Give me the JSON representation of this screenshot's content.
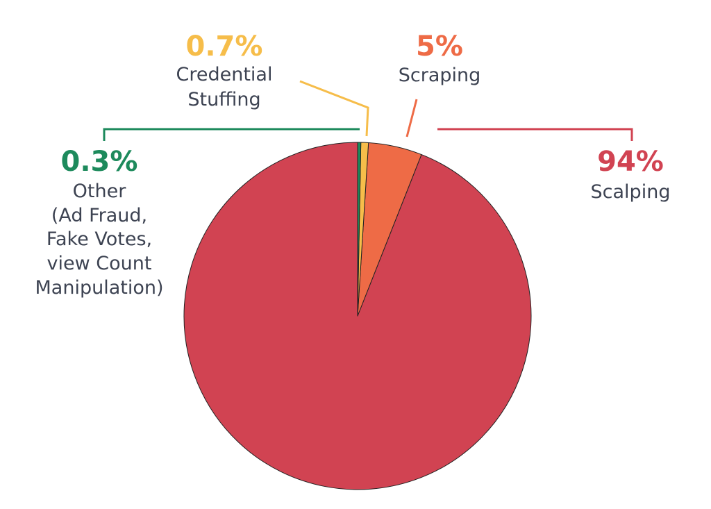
{
  "chart_data": {
    "type": "pie",
    "start_angle": "top",
    "direction": "counterclockwise",
    "slices": [
      {
        "label": "Scalping",
        "value": 94,
        "value_label": "94%",
        "color": "#d14352",
        "lines": [
          "Scalping"
        ]
      },
      {
        "label": "Scraping",
        "value": 5,
        "value_label": "5%",
        "color": "#ee6b46",
        "lines": [
          "Scraping"
        ]
      },
      {
        "label": "Credential Stuffing",
        "value": 0.7,
        "value_label": "0.7%",
        "color": "#f6bd4a",
        "lines": [
          "Credential",
          "Stuffing"
        ]
      },
      {
        "label": "Other (Ad Fraud, Fake Votes, view Count Manipulation)",
        "value": 0.3,
        "value_label": "0.3%",
        "color": "#1d8a5c",
        "lines": [
          "Other",
          "(Ad Fraud,",
          "Fake Votes,",
          "view Count",
          "Manipulation)"
        ]
      }
    ],
    "label_color": "#3d4352",
    "slice_outline": "#222222"
  }
}
